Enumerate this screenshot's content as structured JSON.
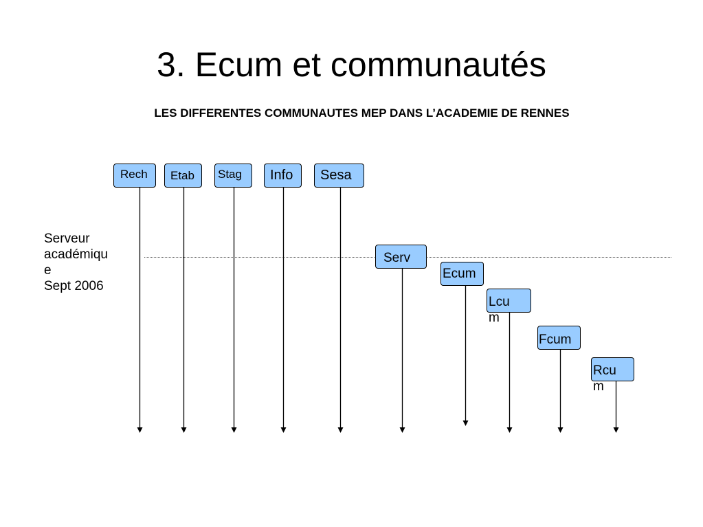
{
  "slide": {
    "title": "3. Ecum et communautés",
    "subtitle": "LES DIFFERENTES COMMUNAUTES MEP  DANS L’ACADEMIE DE RENNES"
  },
  "server_label": {
    "lines": [
      "Serveur",
      "académiqu",
      "e",
      "Sept 2006"
    ]
  },
  "nodes": [
    {
      "id": "rech",
      "lines": [
        "Rech"
      ]
    },
    {
      "id": "etab",
      "lines": [
        "Etab"
      ]
    },
    {
      "id": "stag",
      "lines": [
        "Stag"
      ]
    },
    {
      "id": "info",
      "lines": [
        "Info"
      ]
    },
    {
      "id": "sesa",
      "lines": [
        "Sesa"
      ]
    },
    {
      "id": "serv",
      "lines": [
        "Serv"
      ]
    },
    {
      "id": "ecum",
      "lines": [
        "Ecum"
      ]
    },
    {
      "id": "lcum",
      "lines": [
        "Lcu",
        "m"
      ]
    },
    {
      "id": "fcum",
      "lines": [
        "Fcum"
      ]
    },
    {
      "id": "rcum",
      "lines": [
        "Rcu",
        "m"
      ]
    }
  ],
  "colors": {
    "node_fill": "#99ccff",
    "line": "#000000",
    "server_line": "#555555"
  }
}
